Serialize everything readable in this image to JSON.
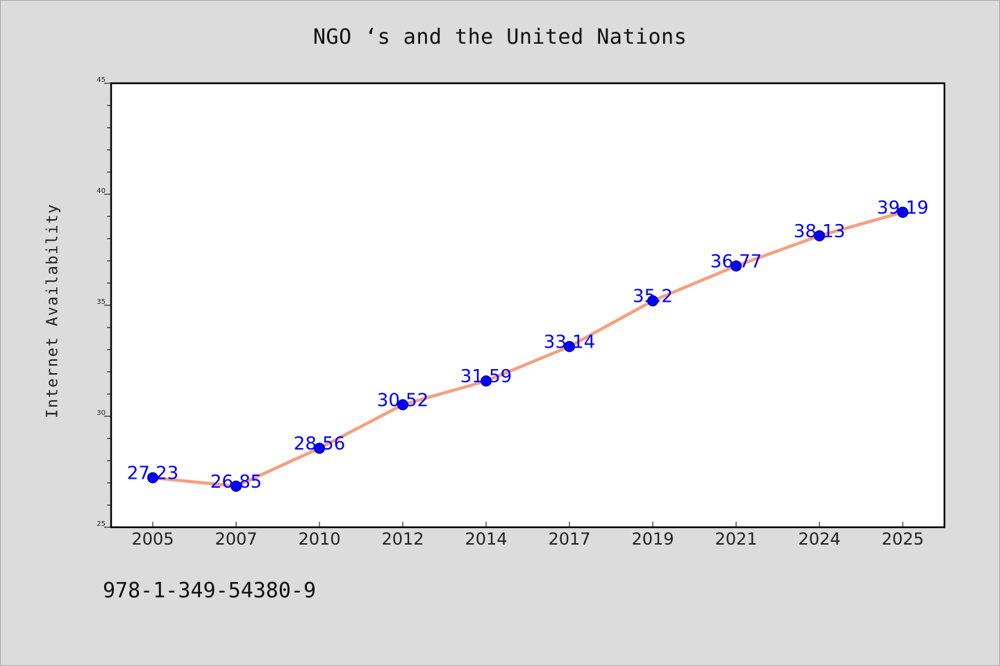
{
  "chart_data": {
    "type": "line",
    "title": "NGO ‘s and the United Nations",
    "xlabel": "",
    "ylabel": "Internet Availability",
    "categories": [
      "2005",
      "2007",
      "2010",
      "2012",
      "2014",
      "2017",
      "2019",
      "2021",
      "2024",
      "2025"
    ],
    "series": [
      {
        "values": [
          27.23,
          26.85,
          28.56,
          30.52,
          31.59,
          33.14,
          35.2,
          36.77,
          38.13,
          39.19
        ],
        "labels": [
          "27.23",
          "26.85",
          "28.56",
          "30.52",
          "31.59",
          "33.14",
          "35.2",
          "36.77",
          "38.13",
          "39.19"
        ]
      }
    ],
    "ylim": [
      25,
      45
    ],
    "yticks": [
      "25",
      "30",
      "35",
      "40",
      "45"
    ],
    "line_color": "#f4a07f",
    "marker_color": "#0000ff",
    "label_color": "#0000ff",
    "grid": false,
    "legend": "none"
  },
  "footnote": "978-1-349-54380-9"
}
